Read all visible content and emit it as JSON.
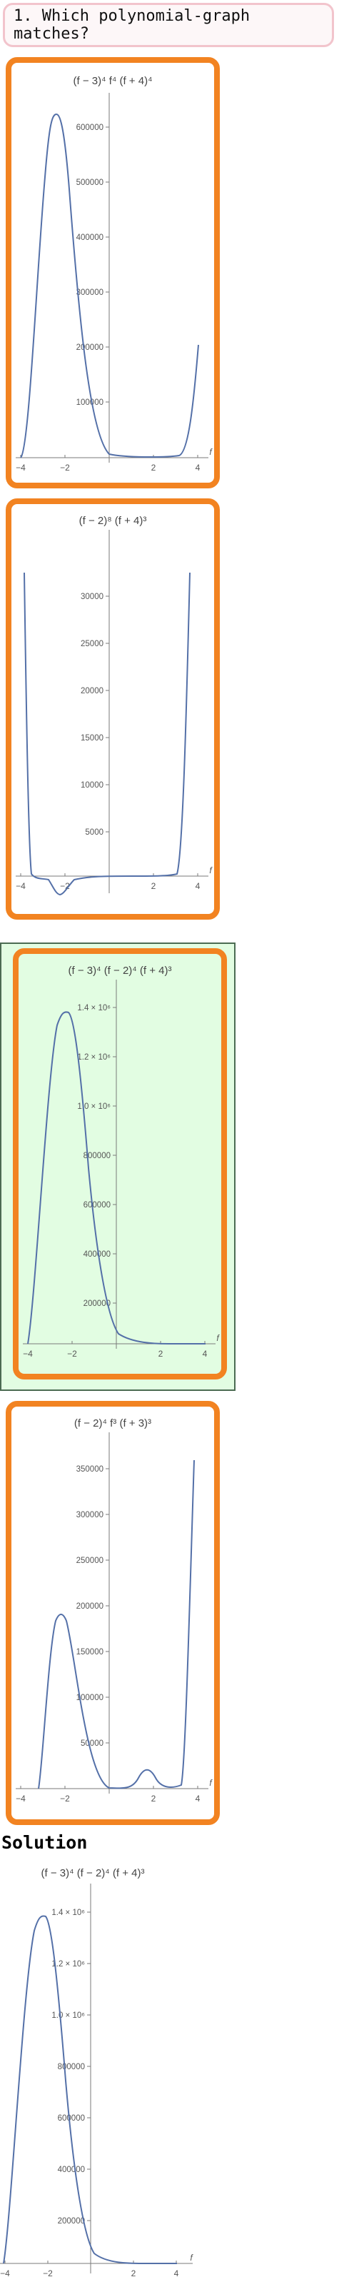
{
  "question": {
    "text": "1. Which polynomial-graph matches?"
  },
  "options": [
    {
      "title": "(f − 3)⁴ f⁴ (f + 4)⁴",
      "y_ticks": [
        "100000",
        "200000",
        "300000",
        "400000",
        "500000",
        "600000"
      ],
      "x_ticks": [
        "−4",
        "−2",
        "2",
        "4"
      ],
      "axis_var": "f",
      "selected": false
    },
    {
      "title": "(f − 2)⁸ (f + 4)³",
      "y_ticks": [
        "5000",
        "10000",
        "15000",
        "20000",
        "25000",
        "30000"
      ],
      "x_ticks": [
        "−4",
        "−2",
        "2",
        "4"
      ],
      "axis_var": "f",
      "selected": false
    },
    {
      "title": "(f − 3)⁴ (f − 2)⁴ (f + 4)³",
      "y_ticks": [
        "200000",
        "400000",
        "600000",
        "800000",
        "1.0 × 10⁶",
        "1.2 × 10⁶",
        "1.4 × 10⁶"
      ],
      "x_ticks": [
        "−4",
        "−2",
        "2",
        "4"
      ],
      "axis_var": "f",
      "selected": true
    },
    {
      "title": "(f − 2)⁴ f³ (f + 3)³",
      "y_ticks": [
        "50000",
        "100000",
        "150000",
        "200000",
        "250000",
        "300000",
        "350000"
      ],
      "x_ticks": [
        "−4",
        "−2",
        "2",
        "4"
      ],
      "axis_var": "f",
      "selected": false
    }
  ],
  "solution": {
    "heading": "Solution",
    "title": "(f − 3)⁴ (f − 2)⁴ (f + 4)³",
    "y_ticks": [
      "200000",
      "400000",
      "600000",
      "800000",
      "1.0 × 10⁶",
      "1.2 × 10⁶",
      "1.4 × 10⁶"
    ],
    "x_ticks": [
      "−4",
      "−2",
      "2",
      "4"
    ],
    "axis_var": "f"
  },
  "colors": {
    "curve": "#5470a8",
    "border": "#f28321",
    "selected_bg": "#e2fde2",
    "axis": "#7a7a7a",
    "tick_label": "#555555"
  }
}
